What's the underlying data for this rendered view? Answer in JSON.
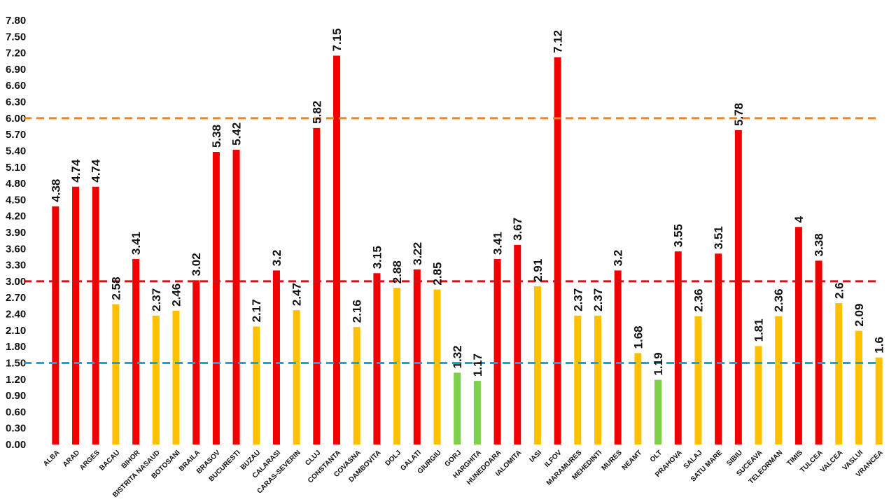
{
  "chart_data": {
    "type": "bar",
    "categories": [
      "ALBA",
      "ARAD",
      "ARGES",
      "BACAU",
      "BIHOR",
      "BISTRITA NASAUD",
      "BOTOSANI",
      "BRAILA",
      "BRASOV",
      "BUCURESTI",
      "BUZAU",
      "CALARASI",
      "CARAS-SEVERIN",
      "CLUJ",
      "CONSTANTA",
      "COVASNA",
      "DAMBOVITA",
      "DOLJ",
      "GALATI",
      "GIURGIU",
      "GORJ",
      "HARGHITA",
      "HUNEDOARA",
      "IALOMITA",
      "IASI",
      "ILFOV",
      "MARAMURES",
      "MEHEDINTI",
      "MURES",
      "NEAMT",
      "OLT",
      "PRAHOVA",
      "SALAJ",
      "SATU MARE",
      "SIBIU",
      "SUCEAVA",
      "TELEORMAN",
      "TIMIS",
      "TULCEA",
      "VALCEA",
      "VASLUI",
      "VRANCEA"
    ],
    "values": [
      4.38,
      4.74,
      4.74,
      2.58,
      3.41,
      2.37,
      2.46,
      3.02,
      5.38,
      5.42,
      2.17,
      3.2,
      2.47,
      5.82,
      7.15,
      2.16,
      3.15,
      2.88,
      3.22,
      2.85,
      1.32,
      1.17,
      3.41,
      3.67,
      2.91,
      7.12,
      2.37,
      2.37,
      3.2,
      1.68,
      1.19,
      3.55,
      2.36,
      3.51,
      5.78,
      1.81,
      2.36,
      4,
      3.38,
      2.6,
      2.09,
      1.6
    ],
    "data_labels": [
      "4.38",
      "4.74",
      "4.74",
      "2.58",
      "3.41",
      "2.37",
      "2.46",
      "3.02",
      "5.38",
      "5.42",
      "2.17",
      "3.2",
      "2.47",
      "5.82",
      "7.15",
      "2.16",
      "3.15",
      "2.88",
      "3.22",
      "2.85",
      "1.32",
      "1.17",
      "3.41",
      "3.67",
      "2.91",
      "7.12",
      "2.37",
      "2.37",
      "3.2",
      "1.68",
      "1.19",
      "3.55",
      "2.36",
      "3.51",
      "5.78",
      "1.81",
      "2.36",
      "4",
      "3.38",
      "2.6",
      "2.09",
      "1.6"
    ],
    "yticks": [
      "0.00",
      "0.30",
      "0.60",
      "0.90",
      "1.20",
      "1.50",
      "1.80",
      "2.10",
      "2.40",
      "2.70",
      "3.00",
      "3.30",
      "3.60",
      "3.90",
      "4.20",
      "4.50",
      "4.80",
      "5.10",
      "5.40",
      "5.70",
      "6.00",
      "6.30",
      "6.60",
      "6.90",
      "7.20",
      "7.50",
      "7.80"
    ],
    "ylim": [
      0,
      7.8
    ],
    "thresholds": [
      {
        "value": 6.0,
        "color": "#e8852a"
      },
      {
        "value": 3.0,
        "color": "#c8181e"
      },
      {
        "value": 1.5,
        "color": "#1aa3d8"
      }
    ],
    "color_rule": [
      {
        "min": 3.0,
        "color": "#f20000"
      },
      {
        "min": 1.5,
        "color": "#ffc000"
      },
      {
        "min": 0,
        "color": "#7ed04b"
      }
    ],
    "title": "",
    "xlabel": "",
    "ylabel": "",
    "grid": false,
    "legend": "none"
  }
}
